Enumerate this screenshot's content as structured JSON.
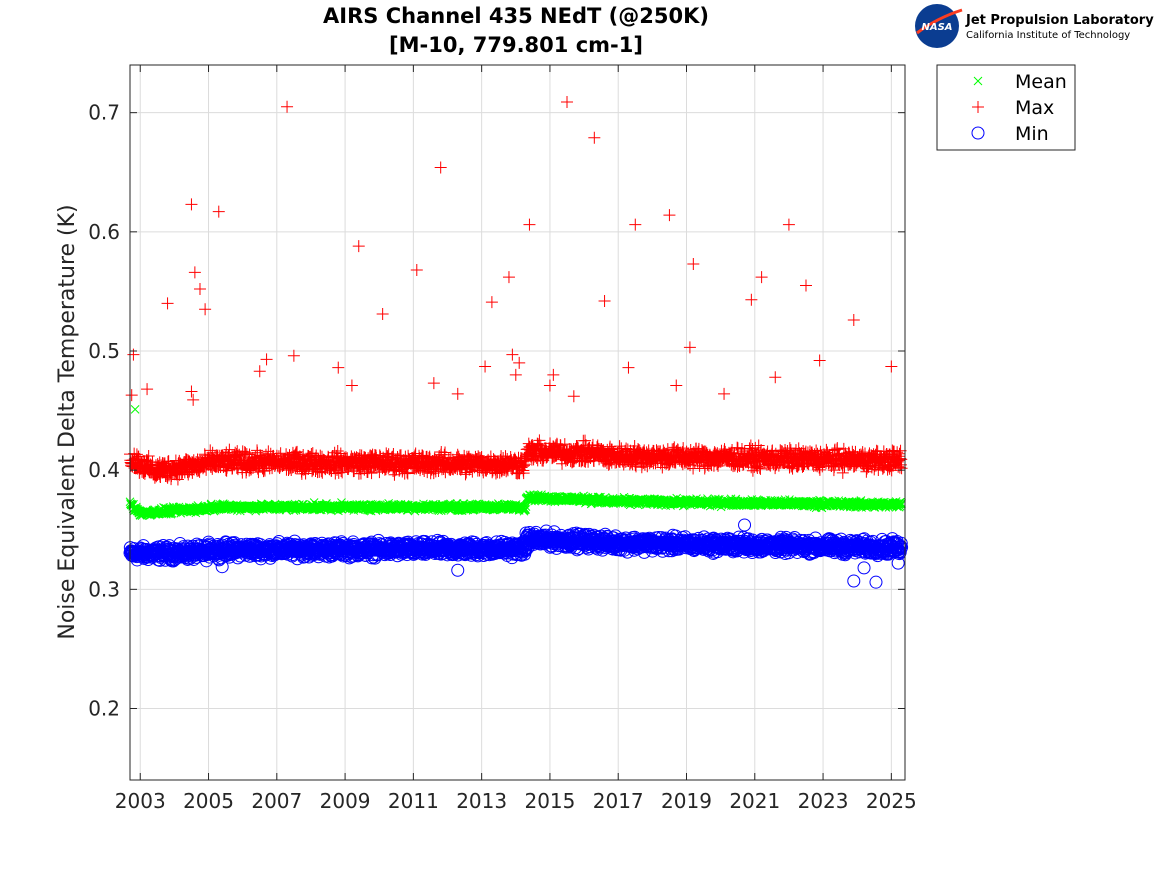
{
  "logo": {
    "emblem_text": "NASA",
    "line1": "Jet Propulsion Laboratory",
    "line2": "California Institute of Technology"
  },
  "chart_data": {
    "type": "scatter",
    "title": [
      "AIRS Channel 435 NEdT (@250K)",
      "[M-10, 779.801 cm-1]"
    ],
    "xlabel": "",
    "ylabel": "Noise Equivalent Delta Temperature (K)",
    "xlim": [
      2002.7,
      2025.4
    ],
    "ylim": [
      0.14,
      0.74
    ],
    "xticks": [
      "2003",
      "2005",
      "2007",
      "2009",
      "2011",
      "2013",
      "2015",
      "2017",
      "2019",
      "2021",
      "2023",
      "2025"
    ],
    "yticks": [
      "0.2",
      "0.3",
      "0.4",
      "0.5",
      "0.6",
      "0.7"
    ],
    "grid": true,
    "legend": "outside-top-right",
    "series": [
      {
        "name": "Mean",
        "marker": "x",
        "color": "#00ff00",
        "segments": [
          {
            "x": [
              2002.7,
              2003.0
            ],
            "y": [
              0.372,
              0.364
            ]
          },
          {
            "x": [
              2003.0,
              2005.0
            ],
            "y": [
              0.364,
              0.368
            ]
          },
          {
            "x": [
              2005.0,
              2014.3
            ],
            "y": [
              0.369,
              0.369
            ]
          },
          {
            "x": [
              2014.3,
              2016.5
            ],
            "y": [
              0.377,
              0.375
            ]
          },
          {
            "x": [
              2016.5,
              2025.3
            ],
            "y": [
              0.374,
              0.371
            ]
          }
        ],
        "outliers": [
          [
            2002.85,
            0.451
          ]
        ]
      },
      {
        "name": "Max",
        "marker": "+",
        "color": "#ff0000",
        "segments": [
          {
            "x": [
              2002.7,
              2003.5
            ],
            "y": [
              0.41,
              0.398
            ]
          },
          {
            "x": [
              2003.5,
              2005.0
            ],
            "y": [
              0.4,
              0.405
            ]
          },
          {
            "x": [
              2005.0,
              2014.3
            ],
            "y": [
              0.407,
              0.405
            ]
          },
          {
            "x": [
              2014.3,
              2016.5
            ],
            "y": [
              0.415,
              0.414
            ]
          },
          {
            "x": [
              2016.5,
              2025.3
            ],
            "y": [
              0.412,
              0.408
            ]
          }
        ],
        "outliers": [
          [
            2002.8,
            0.497
          ],
          [
            2002.75,
            0.463
          ],
          [
            2003.2,
            0.468
          ],
          [
            2003.8,
            0.54
          ],
          [
            2004.5,
            0.623
          ],
          [
            2004.6,
            0.566
          ],
          [
            2004.75,
            0.552
          ],
          [
            2004.9,
            0.535
          ],
          [
            2005.3,
            0.617
          ],
          [
            2004.5,
            0.466
          ],
          [
            2004.55,
            0.459
          ],
          [
            2006.5,
            0.483
          ],
          [
            2006.7,
            0.493
          ],
          [
            2007.3,
            0.705
          ],
          [
            2007.5,
            0.496
          ],
          [
            2008.8,
            0.486
          ],
          [
            2009.4,
            0.588
          ],
          [
            2009.2,
            0.471
          ],
          [
            2010.1,
            0.531
          ],
          [
            2011.1,
            0.568
          ],
          [
            2011.6,
            0.473
          ],
          [
            2011.8,
            0.654
          ],
          [
            2012.3,
            0.464
          ],
          [
            2013.1,
            0.487
          ],
          [
            2013.3,
            0.541
          ],
          [
            2013.8,
            0.562
          ],
          [
            2013.9,
            0.497
          ],
          [
            2014.0,
            0.48
          ],
          [
            2014.1,
            0.49
          ],
          [
            2014.4,
            0.606
          ],
          [
            2015.1,
            0.48
          ],
          [
            2015.0,
            0.471
          ],
          [
            2015.5,
            0.709
          ],
          [
            2015.7,
            0.462
          ],
          [
            2016.3,
            0.679
          ],
          [
            2016.6,
            0.542
          ],
          [
            2017.5,
            0.606
          ],
          [
            2017.3,
            0.486
          ],
          [
            2018.5,
            0.614
          ],
          [
            2018.7,
            0.471
          ],
          [
            2019.1,
            0.503
          ],
          [
            2019.2,
            0.573
          ],
          [
            2020.1,
            0.464
          ],
          [
            2020.9,
            0.543
          ],
          [
            2021.2,
            0.562
          ],
          [
            2021.6,
            0.478
          ],
          [
            2022.0,
            0.606
          ],
          [
            2022.5,
            0.555
          ],
          [
            2022.9,
            0.492
          ],
          [
            2023.9,
            0.526
          ],
          [
            2025.0,
            0.487
          ]
        ]
      },
      {
        "name": "Min",
        "marker": "o",
        "color": "#0000ff",
        "segments": [
          {
            "x": [
              2002.7,
              2005.0
            ],
            "y": [
              0.33,
              0.331
            ]
          },
          {
            "x": [
              2005.0,
              2014.3
            ],
            "y": [
              0.333,
              0.334
            ]
          },
          {
            "x": [
              2014.3,
              2016.5
            ],
            "y": [
              0.342,
              0.34
            ]
          },
          {
            "x": [
              2016.5,
              2025.3
            ],
            "y": [
              0.339,
              0.335
            ]
          }
        ],
        "outliers": [
          [
            2005.4,
            0.319
          ],
          [
            2012.3,
            0.316
          ],
          [
            2020.7,
            0.354
          ],
          [
            2023.9,
            0.307
          ],
          [
            2024.55,
            0.306
          ],
          [
            2024.2,
            0.318
          ],
          [
            2025.2,
            0.322
          ]
        ]
      }
    ]
  }
}
